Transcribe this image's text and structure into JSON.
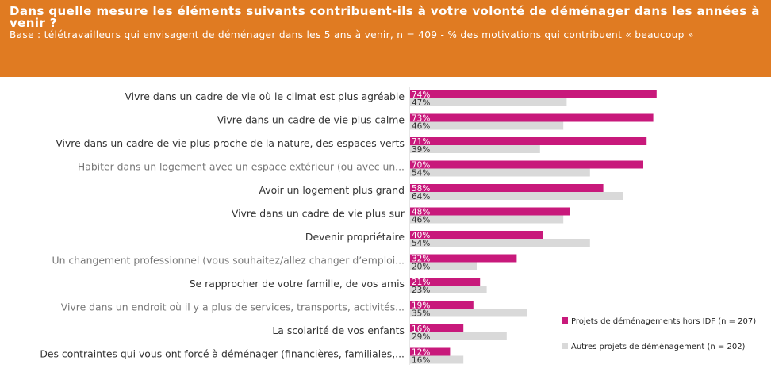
{
  "header": {
    "title": "Dans quelle mesure les éléments suivants contribuent-ils à votre volonté de déménager dans les années à venir ?",
    "subtitle": "Base : télétravailleurs qui envisagent de déménager dans les 5 ans à venir, n = 409 - % des motivations qui contribuent « beaucoup »"
  },
  "colors": {
    "header_bg": "#e07b22",
    "series1": "#c8197b",
    "series2": "#d9d9d9",
    "label_dark": "#333333",
    "label_light": "#777777"
  },
  "chart_data": {
    "type": "bar",
    "orientation": "horizontal",
    "categories": [
      "Vivre dans un cadre de vie où le climat est plus agréable",
      "Vivre dans un cadre de vie plus calme",
      "Vivre dans un cadre de vie plus proche de la nature, des espaces verts",
      "Habiter dans un logement avec un espace extérieur (ou avec un...",
      "Avoir un logement plus grand",
      "Vivre dans un cadre de vie plus sur",
      "Devenir propriétaire",
      "Un changement professionnel (vous souhaitez/allez changer d’emploi...",
      "Se rapprocher de votre famille, de vos amis",
      "Vivre dans un endroit où il y a plus de services, transports, activités...",
      "La scolarité de vos enfants",
      "Des contraintes qui vous ont forcé à déménager (financières, familiales,..."
    ],
    "category_style": [
      "dark",
      "dark",
      "dark",
      "light",
      "dark",
      "dark",
      "dark",
      "light",
      "dark",
      "light",
      "dark",
      "dark"
    ],
    "series": [
      {
        "name": "Projets de déménagements hors IDF (n = 207)",
        "values": [
          74,
          73,
          71,
          70,
          58,
          48,
          40,
          32,
          21,
          19,
          16,
          12
        ],
        "labels": [
          "74%",
          "73%",
          "71%",
          "70%",
          "58%",
          "48%",
          "40%",
          "32%",
          "21%",
          "19%",
          "16%",
          "12%"
        ]
      },
      {
        "name": "Autres projets de déménagement (n = 202)",
        "values": [
          47,
          46,
          39,
          54,
          64,
          46,
          54,
          20,
          23,
          35,
          29,
          16
        ],
        "labels": [
          "47%",
          "46%",
          "39%",
          "54%",
          "64%",
          "46%",
          "54%",
          "20%",
          "23%",
          "35%",
          "29%",
          "16%"
        ]
      }
    ],
    "value_unit": "%",
    "legend_position": "bottom-right",
    "grid": false
  }
}
